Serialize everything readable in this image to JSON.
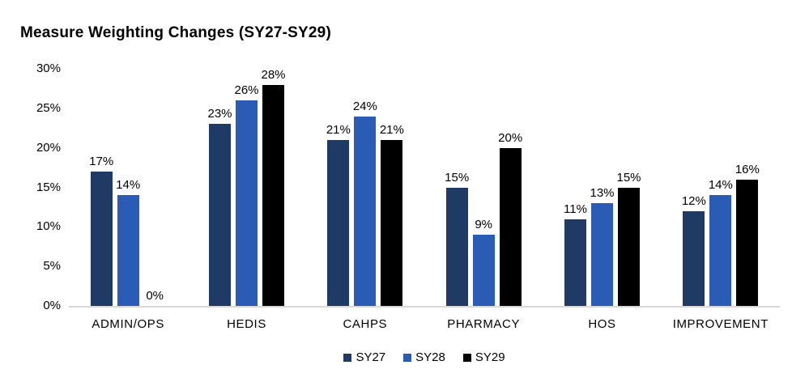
{
  "chart_data": {
    "type": "bar",
    "title": "Measure Weighting Changes (SY27-SY29)",
    "categories": [
      "ADMIN/OPS",
      "HEDIS",
      "CAHPS",
      "PHARMACY",
      "HOS",
      "IMPROVEMENT"
    ],
    "series": [
      {
        "name": "SY27",
        "color": "#1F3A64",
        "values": [
          17,
          23,
          21,
          15,
          11,
          12
        ]
      },
      {
        "name": "SY28",
        "color": "#2A5BB5",
        "values": [
          14,
          26,
          24,
          9,
          13,
          14
        ]
      },
      {
        "name": "SY29",
        "color": "#000000",
        "values": [
          0,
          28,
          21,
          20,
          15,
          16
        ]
      }
    ],
    "value_suffix": "%",
    "ylabel": "",
    "xlabel": "",
    "ylim": [
      0,
      30
    ],
    "yticks": [
      0,
      5,
      10,
      15,
      20,
      25,
      30
    ],
    "ytick_labels": [
      "0%",
      "5%",
      "10%",
      "15%",
      "20%",
      "25%",
      "30%"
    ],
    "grid": false,
    "data_labels": true,
    "legend_position": "bottom",
    "colors": {
      "axis_line": "#D9D9D9",
      "text": "#000000",
      "background": "#FFFFFF"
    }
  }
}
